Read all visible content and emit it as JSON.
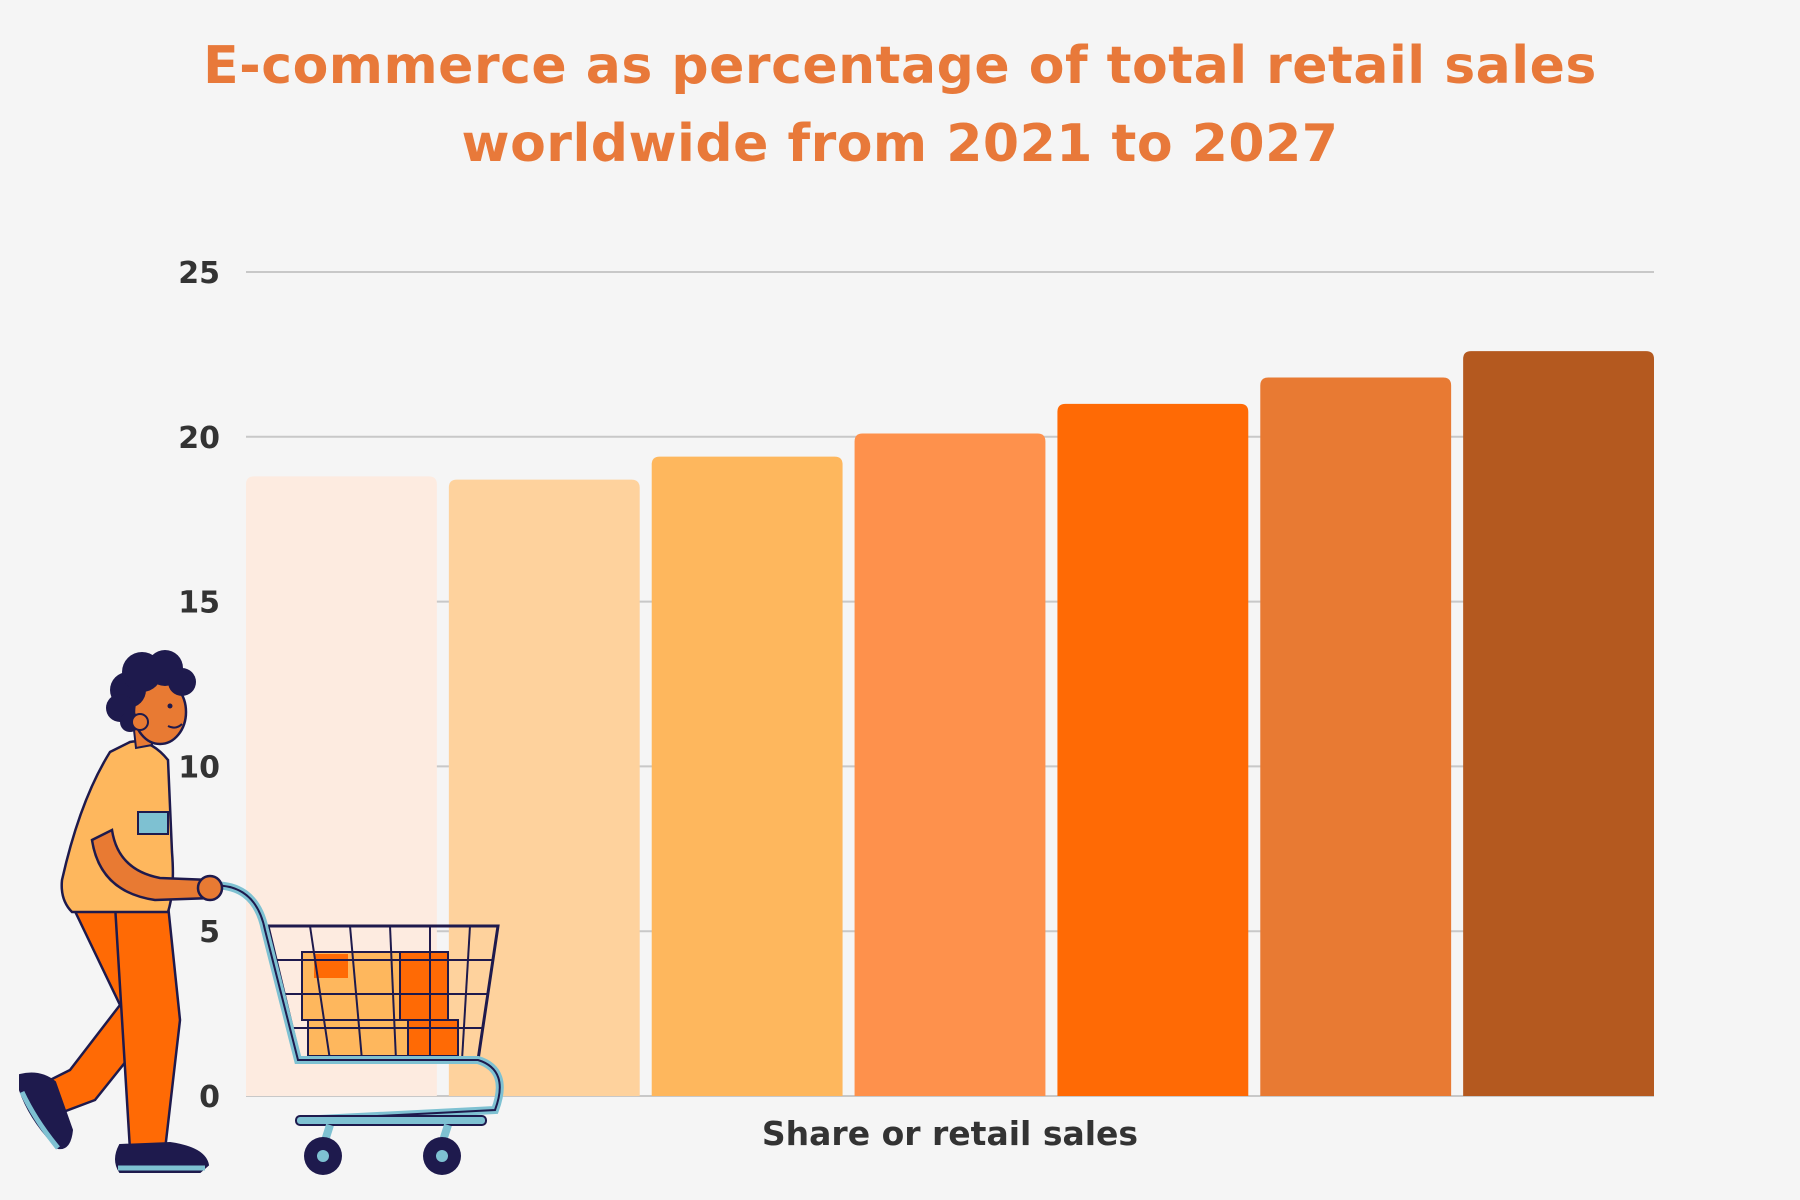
{
  "chart_data": {
    "type": "bar",
    "title_lines": [
      "E-commerce as percentage of total retail sales",
      "worldwide from 2021 to 2027"
    ],
    "xlabel": "Share or retail sales",
    "ylabel": "",
    "ylim": [
      0,
      25
    ],
    "yticks": [
      "0",
      "5",
      "10",
      "15",
      "20",
      "25"
    ],
    "grid": true,
    "legend": "none",
    "values": [
      18.8,
      18.7,
      19.4,
      20.1,
      21.0,
      21.8,
      22.6
    ],
    "colors": [
      "#fdebe0",
      "#fed29d",
      "#feb75d",
      "#fe914c",
      "#ff6a05",
      "#e87a33",
      "#b4591f"
    ]
  },
  "illustration": {
    "name": "shopper-with-cart",
    "colors": {
      "hair": "#1e1a4d",
      "skin": "#e87a33",
      "shirt": "#feb75d",
      "pants": "#ff6a05",
      "shoes": "#1e1a4d",
      "cart": "#1e1a4d",
      "accent": "#7ec1d2"
    }
  }
}
